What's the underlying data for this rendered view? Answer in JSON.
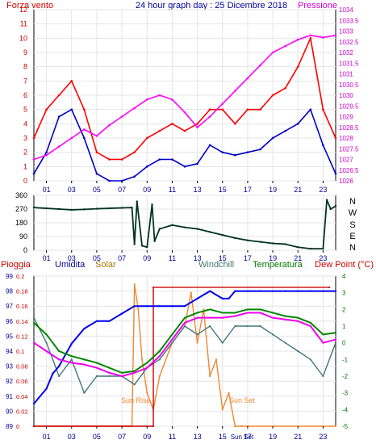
{
  "chart_data": [
    {
      "type": "line",
      "title": "24 hour graph day : 25 Dicembre 2018",
      "left_label": "Forza vento",
      "right_label": "Pressione",
      "x_ticks": [
        "01",
        "03",
        "05",
        "07",
        "09",
        "11",
        "13",
        "15",
        "17",
        "19",
        "21",
        "23"
      ],
      "xlim": [
        0,
        24
      ],
      "y_left_ticks": [
        0,
        1,
        2,
        3,
        4,
        5,
        6,
        7,
        8,
        9,
        10,
        11,
        12
      ],
      "ylim_left": [
        0,
        12
      ],
      "y_right_ticks": [
        "1026",
        "1026.5",
        "1027",
        "1027.5",
        "1028",
        "1028.5",
        "1029",
        "1029.5",
        "1030",
        "1030.5",
        "1031",
        "1031.5",
        "1032",
        "1032.5",
        "1033",
        "1033.5",
        "1034"
      ],
      "ylim_right": [
        1026,
        1034
      ],
      "colors": {
        "gust": "#ff0000",
        "wind": "#0000cc",
        "pressure": "#ff00ff"
      },
      "series": [
        {
          "key": "gust",
          "x": [
            0,
            1,
            2,
            3,
            4,
            5,
            6,
            7,
            8,
            9,
            10,
            11,
            12,
            13,
            14,
            15,
            16,
            17,
            18,
            19,
            20,
            21,
            22,
            23,
            24
          ],
          "values": [
            3,
            5,
            6,
            7,
            5,
            2,
            1.5,
            1.5,
            2,
            3,
            3.5,
            4,
            3.5,
            4,
            5,
            5,
            4,
            5,
            5,
            6,
            6.5,
            8,
            10,
            5,
            3
          ]
        },
        {
          "key": "wind",
          "x": [
            0,
            1,
            2,
            3,
            4,
            5,
            6,
            7,
            8,
            9,
            10,
            11,
            12,
            13,
            14,
            15,
            16,
            17,
            18,
            19,
            20,
            21,
            22,
            23,
            24
          ],
          "values": [
            0.5,
            2,
            4.5,
            5,
            3,
            0.5,
            0,
            0,
            0.3,
            1,
            1.5,
            1.5,
            1,
            1.2,
            2.5,
            2,
            1.8,
            2,
            2.2,
            3,
            3.5,
            4,
            5,
            2.5,
            0.5
          ]
        },
        {
          "key": "pressure",
          "x": [
            0,
            1,
            2,
            3,
            4,
            5,
            6,
            7,
            8,
            9,
            10,
            11,
            12,
            13,
            14,
            15,
            16,
            17,
            18,
            19,
            20,
            21,
            22,
            23,
            24
          ],
          "values": [
            1027,
            1027.2,
            1027.6,
            1028,
            1028.4,
            1028.1,
            1028.6,
            1029,
            1029.4,
            1029.8,
            1030,
            1029.8,
            1029.2,
            1028.5,
            1029,
            1029.6,
            1030.2,
            1030.8,
            1031.4,
            1032,
            1032.3,
            1032.6,
            1032.8,
            1032.7,
            1032.8
          ]
        }
      ]
    },
    {
      "type": "line",
      "x_ticks": [
        "01",
        "03",
        "05",
        "07",
        "09",
        "11",
        "13",
        "15",
        "17",
        "19",
        "21",
        "23"
      ],
      "xlim": [
        0,
        24
      ],
      "y_ticks": [
        0,
        90,
        180,
        270,
        360
      ],
      "ylim": [
        0,
        360
      ],
      "compass": [
        "N",
        "W",
        "S",
        "E",
        "N"
      ],
      "colors": {
        "dir": "#003322"
      },
      "series": [
        {
          "key": "direction",
          "x": [
            0,
            1,
            2,
            3,
            4,
            5,
            6,
            7,
            7.8,
            8,
            8.2,
            8.6,
            9,
            9.4,
            9.6,
            10,
            11,
            12,
            13,
            14,
            15,
            16,
            17,
            18,
            19,
            20,
            21,
            22,
            23,
            23.3,
            23.6,
            24
          ],
          "values": [
            280,
            275,
            270,
            265,
            268,
            272,
            275,
            278,
            280,
            40,
            320,
            30,
            20,
            300,
            60,
            140,
            165,
            150,
            140,
            120,
            100,
            80,
            65,
            55,
            45,
            40,
            20,
            10,
            10,
            330,
            270,
            290
          ]
        }
      ]
    },
    {
      "type": "line",
      "labels": {
        "rain": "Pioggia",
        "humidity": "Umidita",
        "solar": "Solar",
        "windchill": "Windchill",
        "temperature": "Temperatura",
        "dewpoint": "Dew Point (°C)"
      },
      "annotations": {
        "sunrise": "Sun Rise",
        "sunset": "Sun Set"
      },
      "x_ticks": [
        "01",
        "03",
        "05",
        "07",
        "09",
        "11",
        "13",
        "15",
        "17",
        "19",
        "21",
        "23"
      ],
      "sunset_tick": "Sun Set",
      "xlim": [
        0,
        24
      ],
      "y_humidity_ticks": [
        89,
        90,
        91,
        92,
        93,
        94,
        95,
        96,
        97,
        98,
        99
      ],
      "ylim_humidity": [
        89,
        99
      ],
      "y_rain_ticks": [
        "0",
        "0.02",
        "0.04",
        "0.06",
        "0.08",
        "0.1",
        "0.12",
        "0.14",
        "0.16",
        "0.18",
        "0.2"
      ],
      "ylim_rain": [
        0,
        0.2
      ],
      "y_temp_ticks": [
        -5,
        -4,
        -3,
        -2,
        -1,
        0,
        1,
        2,
        3,
        4
      ],
      "ylim_temp": [
        -5,
        4
      ],
      "colors": {
        "rain": "#cc0000",
        "humidity": "#0000ee",
        "solar": "#ee8833",
        "windchill": "#447777",
        "temperature": "#008800",
        "dewpoint": "#ee00ee"
      },
      "series": [
        {
          "key": "rain",
          "x": [
            0,
            9.5,
            9.5,
            23.5
          ],
          "values": [
            0,
            0,
            0.185,
            0.185
          ]
        },
        {
          "key": "humidity",
          "x": [
            0,
            1,
            1.5,
            2,
            3,
            4,
            5,
            6,
            7,
            8,
            9,
            10,
            11,
            12,
            13,
            14,
            15,
            15.5,
            16,
            17,
            18,
            19,
            20,
            21,
            22,
            23,
            24
          ],
          "values": [
            90.5,
            91.5,
            92.5,
            93,
            94.5,
            95.5,
            96,
            96,
            96.5,
            97,
            97,
            97,
            97,
            97,
            97.5,
            98,
            97.5,
            97.5,
            98,
            98,
            98,
            98,
            98,
            98,
            98,
            98,
            98
          ]
        },
        {
          "key": "solar",
          "x": [
            0,
            6.5,
            7,
            7.5,
            7.8,
            8,
            8.3,
            8.6,
            9,
            9.5,
            10,
            11,
            12,
            12.5,
            13,
            13.5,
            14,
            14.5,
            15,
            15.5,
            16,
            16.5,
            17,
            24
          ],
          "values": [
            -5,
            -5,
            -5,
            -5,
            -5,
            3.5,
            2,
            -1,
            -3,
            -4,
            -2,
            0,
            1,
            3,
            0,
            2,
            -2,
            -1,
            -4,
            -3,
            -5,
            -5,
            -5,
            -5
          ]
        },
        {
          "key": "windchill",
          "x": [
            0,
            1,
            2,
            3,
            4,
            5,
            6,
            7,
            8,
            9,
            10,
            11,
            12,
            13,
            14,
            15,
            16,
            17,
            18,
            19,
            20,
            21,
            22,
            23,
            24
          ],
          "values": [
            1.5,
            0,
            -2,
            -1,
            -3,
            -2,
            -2,
            -2,
            -2.5,
            -1.5,
            -1,
            0,
            1,
            0.5,
            1,
            0,
            1,
            1,
            1,
            0.5,
            0,
            -0.5,
            -1,
            -2,
            0
          ]
        },
        {
          "key": "temperature",
          "x": [
            0,
            1,
            2,
            3,
            4,
            5,
            6,
            7,
            8,
            9,
            10,
            11,
            12,
            13,
            14,
            15,
            16,
            17,
            18,
            19,
            20,
            21,
            22,
            23,
            24
          ],
          "values": [
            1.2,
            0.5,
            -0.5,
            -0.8,
            -1,
            -1.2,
            -1.5,
            -1.8,
            -1.7,
            -1.2,
            -0.5,
            0.5,
            1.5,
            1.8,
            2,
            1.8,
            1.8,
            2,
            2,
            1.8,
            1.6,
            1.5,
            1.2,
            0.5,
            0.6
          ]
        },
        {
          "key": "dewpoint",
          "x": [
            0,
            1,
            2,
            3,
            4,
            5,
            6,
            7,
            8,
            9,
            10,
            11,
            12,
            13,
            14,
            15,
            16,
            17,
            18,
            19,
            20,
            21,
            22,
            23,
            24
          ],
          "values": [
            0,
            -0.5,
            -1,
            -1.2,
            -1.3,
            -1.5,
            -1.8,
            -2,
            -1.8,
            -1.5,
            -0.8,
            0.2,
            1.2,
            1.5,
            1.5,
            1.5,
            1.6,
            1.8,
            1.8,
            1.5,
            1.4,
            1.3,
            1,
            0,
            0.2
          ]
        }
      ]
    }
  ]
}
